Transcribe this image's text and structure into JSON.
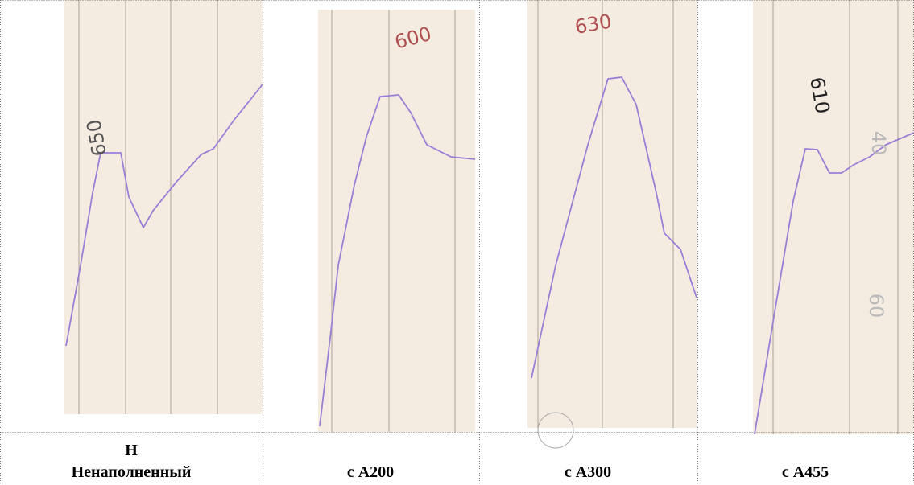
{
  "panels": [
    {
      "annotation": "650",
      "caption": [
        "Н",
        "Ненаполненный"
      ]
    },
    {
      "annotation": "600",
      "caption": [
        "с А200"
      ]
    },
    {
      "annotation": "630",
      "caption": [
        "с А300"
      ]
    },
    {
      "annotation": "610",
      "faint_marks": [
        "40",
        "60"
      ],
      "caption": [
        "с А455"
      ]
    }
  ]
}
